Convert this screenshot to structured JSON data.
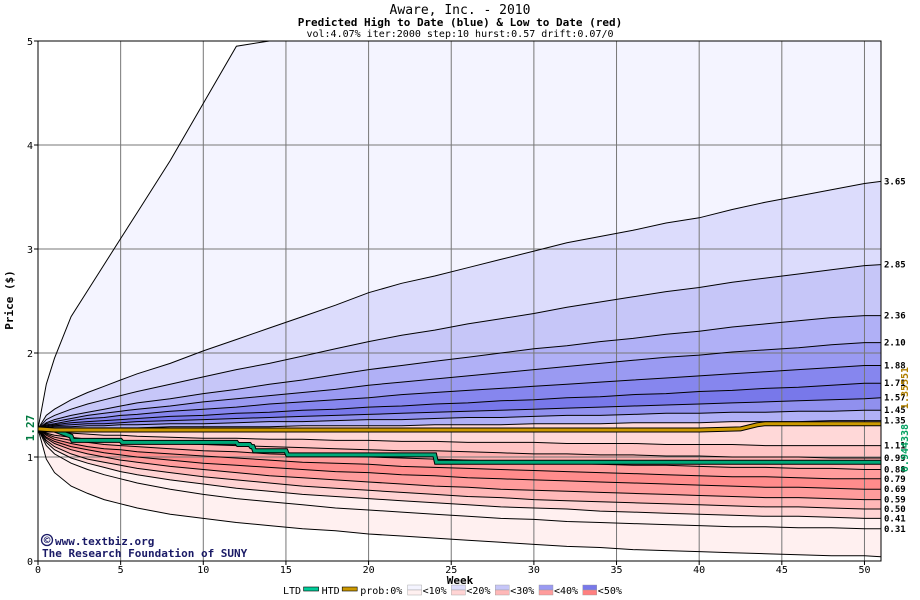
{
  "chart_data": {
    "type": "area",
    "title": "Aware, Inc. - 2010",
    "subtitle": "Predicted High to Date (blue) &  Low to Date (red)",
    "params": "vol:4.07% iter:2000 step:10 hurst:0.57 drift:0.07/0",
    "xlabel": "Week",
    "ylabel": "Price ($)",
    "xlim": [
      0,
      51
    ],
    "ylim": [
      0,
      5
    ],
    "x_ticks": [
      0,
      5,
      10,
      15,
      20,
      25,
      30,
      35,
      40,
      45,
      50
    ],
    "y_ticks": [
      0,
      1,
      2,
      3,
      4,
      5
    ],
    "grid": true,
    "start_price": 1.27,
    "start_label": "1.27",
    "x": [
      0,
      0.5,
      1,
      2,
      3,
      4,
      5,
      6,
      8,
      10,
      12,
      14,
      16,
      18,
      20,
      22,
      24,
      26,
      28,
      30,
      32,
      34,
      36,
      38,
      40,
      42,
      44,
      46,
      48,
      50,
      51
    ],
    "high_curves": [
      {
        "end_label": "",
        "values": [
          1.27,
          1.7,
          1.95,
          2.35,
          2.6,
          2.85,
          3.1,
          3.35,
          3.85,
          4.4,
          4.95,
          5.0,
          5.0,
          5.0,
          5.0,
          5.0,
          5.0,
          5.0,
          5.0,
          5.0,
          5.0,
          5.0,
          5.0,
          5.0,
          5.0,
          5.0,
          5.0,
          5.0,
          5.0,
          5.0,
          5.0
        ]
      },
      {
        "end_label": "3.65",
        "values": [
          1.27,
          1.4,
          1.46,
          1.55,
          1.62,
          1.68,
          1.74,
          1.8,
          1.9,
          2.02,
          2.13,
          2.24,
          2.35,
          2.46,
          2.58,
          2.67,
          2.74,
          2.82,
          2.9,
          2.98,
          3.06,
          3.12,
          3.18,
          3.25,
          3.3,
          3.38,
          3.45,
          3.51,
          3.57,
          3.63,
          3.65
        ]
      },
      {
        "end_label": "2.85",
        "values": [
          1.27,
          1.36,
          1.4,
          1.46,
          1.51,
          1.55,
          1.59,
          1.63,
          1.7,
          1.77,
          1.84,
          1.9,
          1.97,
          2.04,
          2.11,
          2.17,
          2.22,
          2.28,
          2.33,
          2.38,
          2.44,
          2.49,
          2.54,
          2.59,
          2.63,
          2.68,
          2.72,
          2.76,
          2.8,
          2.84,
          2.85
        ]
      },
      {
        "end_label": "2.36",
        "values": [
          1.27,
          1.33,
          1.36,
          1.4,
          1.43,
          1.46,
          1.49,
          1.52,
          1.56,
          1.61,
          1.65,
          1.7,
          1.74,
          1.79,
          1.84,
          1.88,
          1.92,
          1.96,
          2.0,
          2.04,
          2.07,
          2.11,
          2.14,
          2.18,
          2.21,
          2.25,
          2.28,
          2.31,
          2.34,
          2.36,
          2.36
        ]
      },
      {
        "end_label": "2.10",
        "values": [
          1.27,
          1.32,
          1.34,
          1.37,
          1.4,
          1.42,
          1.44,
          1.46,
          1.49,
          1.53,
          1.56,
          1.59,
          1.62,
          1.65,
          1.69,
          1.72,
          1.75,
          1.78,
          1.81,
          1.84,
          1.87,
          1.9,
          1.93,
          1.96,
          1.98,
          2.01,
          2.03,
          2.05,
          2.08,
          2.1,
          2.1
        ]
      },
      {
        "end_label": "1.88",
        "values": [
          1.27,
          1.31,
          1.32,
          1.35,
          1.37,
          1.38,
          1.4,
          1.41,
          1.44,
          1.46,
          1.48,
          1.51,
          1.53,
          1.55,
          1.57,
          1.6,
          1.62,
          1.64,
          1.66,
          1.68,
          1.7,
          1.72,
          1.74,
          1.76,
          1.78,
          1.8,
          1.82,
          1.84,
          1.86,
          1.88,
          1.88
        ]
      },
      {
        "end_label": "1.71",
        "values": [
          1.27,
          1.3,
          1.31,
          1.33,
          1.34,
          1.35,
          1.36,
          1.37,
          1.39,
          1.4,
          1.42,
          1.43,
          1.45,
          1.46,
          1.48,
          1.49,
          1.51,
          1.52,
          1.54,
          1.55,
          1.57,
          1.58,
          1.6,
          1.61,
          1.63,
          1.64,
          1.66,
          1.67,
          1.69,
          1.71,
          1.71
        ]
      },
      {
        "end_label": "1.57",
        "values": [
          1.27,
          1.29,
          1.3,
          1.31,
          1.32,
          1.32,
          1.33,
          1.34,
          1.35,
          1.36,
          1.37,
          1.38,
          1.39,
          1.4,
          1.41,
          1.42,
          1.43,
          1.44,
          1.45,
          1.46,
          1.47,
          1.48,
          1.49,
          1.5,
          1.51,
          1.52,
          1.53,
          1.54,
          1.55,
          1.56,
          1.57
        ]
      },
      {
        "end_label": "1.45",
        "values": [
          1.27,
          1.28,
          1.29,
          1.29,
          1.3,
          1.3,
          1.31,
          1.31,
          1.32,
          1.32,
          1.33,
          1.34,
          1.34,
          1.35,
          1.36,
          1.36,
          1.37,
          1.38,
          1.38,
          1.39,
          1.4,
          1.4,
          1.41,
          1.42,
          1.42,
          1.43,
          1.43,
          1.44,
          1.44,
          1.45,
          1.45
        ]
      },
      {
        "end_label": "1.35",
        "values": [
          1.27,
          1.27,
          1.28,
          1.28,
          1.28,
          1.28,
          1.28,
          1.28,
          1.29,
          1.29,
          1.29,
          1.29,
          1.3,
          1.3,
          1.3,
          1.3,
          1.31,
          1.31,
          1.31,
          1.32,
          1.32,
          1.32,
          1.33,
          1.33,
          1.33,
          1.34,
          1.34,
          1.34,
          1.35,
          1.35,
          1.35
        ]
      }
    ],
    "low_curves": [
      {
        "end_label": "1.11",
        "values": [
          1.27,
          1.25,
          1.24,
          1.23,
          1.22,
          1.21,
          1.21,
          1.2,
          1.19,
          1.18,
          1.18,
          1.17,
          1.17,
          1.16,
          1.16,
          1.15,
          1.15,
          1.14,
          1.14,
          1.14,
          1.13,
          1.13,
          1.13,
          1.12,
          1.12,
          1.12,
          1.11,
          1.11,
          1.11,
          1.11,
          1.11
        ]
      },
      {
        "end_label": "0.99",
        "values": [
          1.27,
          1.23,
          1.21,
          1.19,
          1.17,
          1.16,
          1.15,
          1.14,
          1.13,
          1.12,
          1.11,
          1.1,
          1.09,
          1.08,
          1.07,
          1.06,
          1.06,
          1.05,
          1.04,
          1.03,
          1.03,
          1.02,
          1.02,
          1.01,
          1.01,
          1.0,
          1.0,
          1.0,
          0.99,
          0.99,
          0.99
        ]
      },
      {
        "end_label": "0.88",
        "values": [
          1.27,
          1.22,
          1.19,
          1.16,
          1.14,
          1.12,
          1.11,
          1.1,
          1.08,
          1.06,
          1.05,
          1.03,
          1.02,
          1.01,
          1.0,
          0.99,
          0.98,
          0.97,
          0.96,
          0.95,
          0.94,
          0.93,
          0.92,
          0.92,
          0.91,
          0.9,
          0.9,
          0.89,
          0.89,
          0.88,
          0.88
        ]
      },
      {
        "end_label": "0.79",
        "values": [
          1.27,
          1.21,
          1.17,
          1.13,
          1.1,
          1.08,
          1.07,
          1.05,
          1.03,
          1.01,
          0.99,
          0.97,
          0.95,
          0.94,
          0.93,
          0.91,
          0.9,
          0.89,
          0.88,
          0.87,
          0.86,
          0.85,
          0.84,
          0.83,
          0.82,
          0.81,
          0.81,
          0.8,
          0.79,
          0.79,
          0.79
        ]
      },
      {
        "end_label": "0.69",
        "values": [
          1.27,
          1.19,
          1.15,
          1.1,
          1.07,
          1.04,
          1.02,
          1.0,
          0.97,
          0.94,
          0.92,
          0.9,
          0.88,
          0.86,
          0.85,
          0.83,
          0.82,
          0.8,
          0.79,
          0.78,
          0.77,
          0.76,
          0.75,
          0.74,
          0.73,
          0.72,
          0.71,
          0.71,
          0.7,
          0.69,
          0.69
        ]
      },
      {
        "end_label": "0.59",
        "values": [
          1.27,
          1.18,
          1.13,
          1.07,
          1.03,
          1.0,
          0.97,
          0.95,
          0.91,
          0.88,
          0.85,
          0.82,
          0.8,
          0.78,
          0.76,
          0.74,
          0.72,
          0.71,
          0.69,
          0.68,
          0.67,
          0.66,
          0.65,
          0.64,
          0.63,
          0.62,
          0.61,
          0.61,
          0.6,
          0.59,
          0.59
        ]
      },
      {
        "end_label": "0.50",
        "values": [
          1.27,
          1.16,
          1.1,
          1.03,
          0.98,
          0.95,
          0.92,
          0.89,
          0.85,
          0.81,
          0.78,
          0.75,
          0.72,
          0.7,
          0.68,
          0.66,
          0.64,
          0.62,
          0.61,
          0.59,
          0.58,
          0.57,
          0.56,
          0.55,
          0.54,
          0.53,
          0.52,
          0.52,
          0.51,
          0.5,
          0.5
        ]
      },
      {
        "end_label": "0.41",
        "values": [
          1.27,
          1.14,
          1.07,
          0.99,
          0.94,
          0.9,
          0.86,
          0.83,
          0.78,
          0.74,
          0.7,
          0.67,
          0.64,
          0.62,
          0.6,
          0.58,
          0.56,
          0.54,
          0.52,
          0.51,
          0.5,
          0.48,
          0.47,
          0.46,
          0.45,
          0.44,
          0.43,
          0.43,
          0.42,
          0.41,
          0.41
        ]
      },
      {
        "end_label": "0.31",
        "values": [
          1.27,
          1.11,
          1.03,
          0.94,
          0.88,
          0.83,
          0.79,
          0.75,
          0.69,
          0.64,
          0.6,
          0.57,
          0.54,
          0.51,
          0.49,
          0.47,
          0.45,
          0.43,
          0.41,
          0.4,
          0.38,
          0.37,
          0.36,
          0.35,
          0.34,
          0.33,
          0.33,
          0.32,
          0.32,
          0.31,
          0.31
        ]
      },
      {
        "end_label": "",
        "values": [
          1.27,
          0.98,
          0.85,
          0.72,
          0.65,
          0.59,
          0.55,
          0.51,
          0.45,
          0.41,
          0.37,
          0.34,
          0.31,
          0.29,
          0.26,
          0.24,
          0.22,
          0.2,
          0.18,
          0.16,
          0.14,
          0.13,
          0.11,
          0.1,
          0.09,
          0.08,
          0.07,
          0.06,
          0.05,
          0.05,
          0.04
        ]
      }
    ],
    "band_colors_high": [
      "#f4f4ff",
      "#dcdcfc",
      "#c6c6f8",
      "#b0b0f6",
      "#9a9af2",
      "#8686ee",
      "#7878ea",
      "#9090ee",
      "#b0b0f6"
    ],
    "band_colors_low": [
      "#ffd8d8",
      "#ffc4c4",
      "#ffb0b0",
      "#ff9c9c",
      "#ff8c8c",
      "#ff9c9c",
      "#ffb8b8",
      "#ffd4d4",
      "#fff0f0"
    ],
    "htd_series": {
      "name": "HTD",
      "color": "#cc9900",
      "x": [
        0,
        1,
        2,
        5,
        10,
        20,
        30,
        40,
        42.5,
        43.5,
        44,
        51
      ],
      "values": [
        1.27,
        1.26,
        1.26,
        1.26,
        1.26,
        1.26,
        1.26,
        1.26,
        1.27,
        1.31,
        1.32,
        1.32
      ]
    },
    "ltd_series": {
      "name": "LTD",
      "color": "#00a878",
      "x": [
        0,
        0.3,
        1,
        2,
        2.1,
        5,
        5.1,
        12,
        12.1,
        12.8,
        12.9,
        13,
        13.1,
        15,
        15.1,
        24,
        24.1,
        51
      ],
      "values": [
        1.27,
        1.26,
        1.26,
        1.2,
        1.16,
        1.16,
        1.14,
        1.14,
        1.12,
        1.12,
        1.1,
        1.1,
        1.06,
        1.06,
        1.02,
        1.02,
        0.95,
        0.95
      ]
    },
    "right_axis_value_1": "0.944338",
    "right_axis_value_2": "1.35551",
    "legend": [
      {
        "label": "LTD",
        "kind": "line",
        "color": "#00cc99"
      },
      {
        "label": "HTD",
        "kind": "line",
        "color": "#cc9900"
      },
      {
        "label": "prob:0%",
        "kind": "text"
      },
      {
        "label": "<10%",
        "kind": "swatch",
        "color_top": "#f4f4ff",
        "color_bottom": "#fff0f0"
      },
      {
        "label": "<20%",
        "kind": "swatch",
        "color_top": "#dcdcfc",
        "color_bottom": "#ffd4d4"
      },
      {
        "label": "<30%",
        "kind": "swatch",
        "color_top": "#c6c6f8",
        "color_bottom": "#ffb8b8"
      },
      {
        "label": "<40%",
        "kind": "swatch",
        "color_top": "#9a9af2",
        "color_bottom": "#ff9c9c"
      },
      {
        "label": "<50%",
        "kind": "swatch",
        "color_top": "#7878ea",
        "color_bottom": "#ff8080"
      }
    ],
    "credit_line_1": "www.textbiz.org",
    "credit_line_2": "The Research Foundation of SUNY",
    "copyright_symbol": "©"
  }
}
